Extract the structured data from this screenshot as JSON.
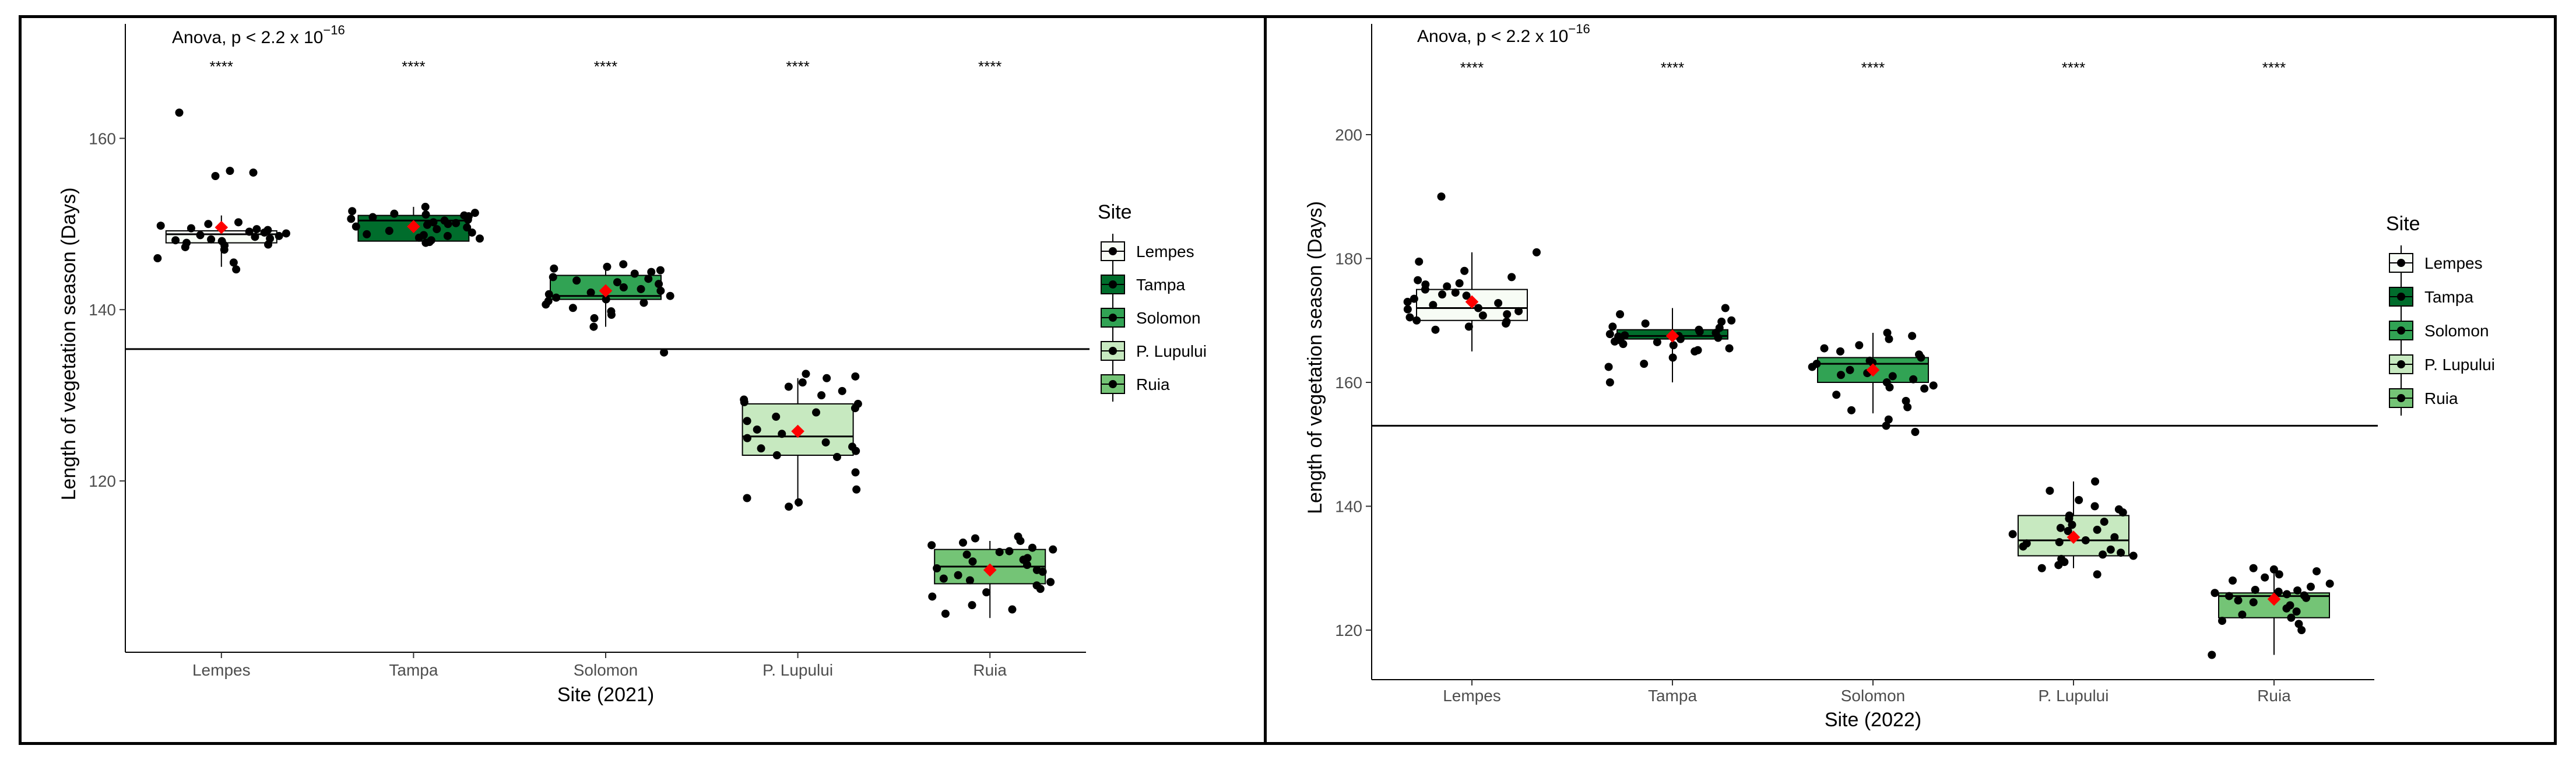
{
  "chart_data": [
    {
      "type": "boxplot",
      "title": "",
      "annotation": {
        "prefix": "Anova, p < ",
        "mantissa": "2.2",
        "times": " x ",
        "base": "10",
        "exponent": "−16"
      },
      "xlabel": "Site (2021)",
      "ylabel": "Length of vegetation season (Days)",
      "ylim": [
        100,
        172
      ],
      "yticks": [
        120,
        140,
        160
      ],
      "categories": [
        "Lempes",
        "Tampa",
        "Solomon",
        "P. Lupului",
        "Ruia"
      ],
      "significance": [
        "****",
        "****",
        "****",
        "****",
        "****"
      ],
      "hline": 135.4,
      "legend_title": "Site",
      "legend_position": "right",
      "colors": [
        "#f7fcf5",
        "#006d2c",
        "#31a354",
        "#c7e9c0",
        "#74c476"
      ],
      "boxes": [
        {
          "q1": 147.8,
          "median": 148.8,
          "q3": 149.2,
          "whisker_low": 145,
          "whisker_high": 151,
          "mean": 149.6
        },
        {
          "q1": 148,
          "median": 150.4,
          "q3": 151,
          "whisker_low": 148,
          "whisker_high": 152,
          "mean": 149.7
        },
        {
          "q1": 141.2,
          "median": 141.6,
          "q3": 144,
          "whisker_low": 138,
          "whisker_high": 145,
          "mean": 142.2
        },
        {
          "q1": 123,
          "median": 125.2,
          "q3": 129,
          "whisker_low": 117,
          "whisker_high": 132,
          "mean": 125.8
        },
        {
          "q1": 108,
          "median": 110,
          "q3": 112,
          "whisker_low": 104,
          "whisker_high": 113,
          "mean": 109.6
        }
      ],
      "points": [
        [
          163,
          156,
          156.2,
          155.6,
          149.5,
          149,
          148.5,
          148,
          147.5,
          147,
          146,
          145.5,
          144.7,
          150,
          149.3,
          148.7,
          148.2,
          147.8,
          148.9,
          149.1,
          148.3,
          147.6,
          149.8,
          150.2,
          148.6,
          147.3,
          149.4,
          148.1
        ],
        [
          152,
          151.5,
          151.2,
          151,
          150.8,
          150.5,
          150.2,
          150,
          149.7,
          149.4,
          149,
          148.7,
          148.4,
          148.1,
          147.9,
          151.3,
          150.9,
          150.6,
          150.1,
          149.6,
          149.2,
          148.8,
          148.3,
          151.1,
          150.4,
          149.9,
          148.6,
          147.8
        ],
        [
          145.3,
          145,
          144.6,
          144.2,
          143.8,
          143.4,
          143,
          142.6,
          142.2,
          141.8,
          141.4,
          141,
          140.6,
          140.2,
          139.8,
          139.4,
          139,
          138,
          135,
          144.8,
          143.6,
          142.4,
          141.6,
          140.8,
          144.4,
          143.2,
          142,
          141.2
        ],
        [
          132.5,
          132.2,
          132,
          131.5,
          131,
          130.5,
          130,
          129.5,
          129,
          128.5,
          128,
          127,
          126,
          125,
          124.5,
          124,
          123.5,
          123,
          122.8,
          119,
          118,
          117.5,
          117,
          129.2,
          127.5,
          125.5,
          123.8,
          121
        ],
        [
          113.5,
          113.3,
          113,
          112.8,
          112.5,
          112.2,
          112,
          111.7,
          111.4,
          111,
          110.6,
          110.2,
          109.8,
          109.4,
          109,
          108.6,
          108.2,
          107.8,
          107.4,
          107,
          106.5,
          105.5,
          105,
          104.5,
          111.8,
          110.8,
          109.6,
          108.4
        ]
      ]
    },
    {
      "type": "boxplot",
      "title": "",
      "annotation": {
        "prefix": "Anova, p < ",
        "mantissa": "2.2",
        "times": " x ",
        "base": "10",
        "exponent": "−16"
      },
      "xlabel": "Site (2022)",
      "ylabel": "Length of vegetation season (Days)",
      "ylim": [
        112,
        216
      ],
      "yticks": [
        120,
        140,
        160,
        180,
        200
      ],
      "categories": [
        "Lempes",
        "Tampa",
        "Solomon",
        "P. Lupului",
        "Ruia"
      ],
      "significance": [
        "****",
        "****",
        "****",
        "****",
        "****"
      ],
      "hline": 153,
      "legend_title": "Site",
      "legend_position": "right",
      "colors": [
        "#f7fcf5",
        "#006d2c",
        "#31a354",
        "#c7e9c0",
        "#74c476"
      ],
      "boxes": [
        {
          "q1": 170,
          "median": 172,
          "q3": 175,
          "whisker_low": 165,
          "whisker_high": 181,
          "mean": 173
        },
        {
          "q1": 167,
          "median": 167.5,
          "q3": 168.5,
          "whisker_low": 160,
          "whisker_high": 172,
          "mean": 167.5
        },
        {
          "q1": 160,
          "median": 163,
          "q3": 164,
          "whisker_low": 155,
          "whisker_high": 168,
          "mean": 162
        },
        {
          "q1": 132,
          "median": 134.5,
          "q3": 138.5,
          "whisker_low": 130,
          "whisker_high": 144,
          "mean": 135
        },
        {
          "q1": 122,
          "median": 125.5,
          "q3": 126,
          "whisker_low": 116,
          "whisker_high": 130,
          "mean": 125
        }
      ],
      "points": [
        [
          190,
          181,
          179.5,
          178,
          177,
          176,
          175.5,
          175,
          174.5,
          174,
          173,
          172.5,
          172,
          171.5,
          171,
          170.5,
          170,
          169.5,
          169,
          168.5,
          176.5,
          173.5,
          171.8,
          170.8,
          175.8,
          169.8,
          172.8,
          174.2
        ],
        [
          172,
          171,
          170,
          169.5,
          169,
          168.5,
          168,
          167.8,
          167.5,
          167.2,
          167,
          166.8,
          166.5,
          166,
          165.5,
          165,
          164,
          163,
          162.5,
          160,
          168.2,
          167.6,
          166.6,
          168.8,
          167.4,
          166.2,
          165.2,
          169.8
        ],
        [
          168,
          167.5,
          167,
          166,
          165,
          164.5,
          164,
          163.5,
          163,
          162.5,
          162,
          161.5,
          161,
          160.5,
          160,
          159.5,
          159,
          158,
          157,
          156,
          155.5,
          154,
          153,
          152,
          165.5,
          163.2,
          161.2,
          159.2
        ],
        [
          144,
          142.5,
          141,
          140,
          139.5,
          139,
          138.5,
          138,
          137.5,
          137,
          136.5,
          136,
          135.5,
          135,
          134.5,
          134,
          133.5,
          133,
          132.5,
          132,
          131.5,
          131,
          130.5,
          130,
          129,
          136.2,
          134.2,
          132.2
        ],
        [
          130,
          129.8,
          129.5,
          129,
          128.5,
          128,
          127.5,
          127,
          126.5,
          126.2,
          126,
          125.8,
          125.5,
          125.2,
          125,
          124.8,
          124.5,
          124,
          123.5,
          123,
          122.5,
          122,
          121.5,
          121,
          120,
          116,
          126.4,
          125.6
        ]
      ]
    }
  ]
}
